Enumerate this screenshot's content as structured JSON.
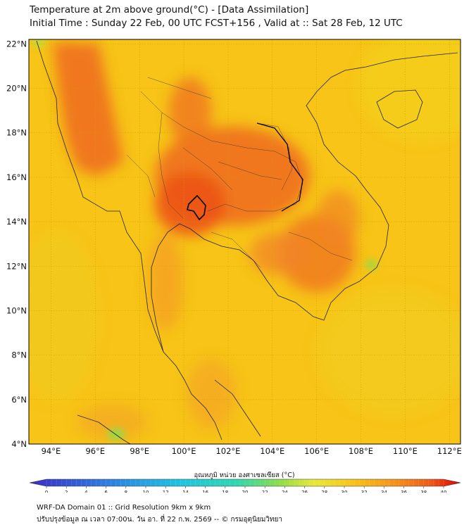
{
  "header": {
    "title": "Temperature at 2m above ground(°C) - [Data Assimilation]",
    "subtitle": "Initial Time : Sunday 22 Feb, 00 UTC FCST+156 , Valid at :: Sat 28 Feb, 12 UTC"
  },
  "map": {
    "lon_range": [
      93,
      112.5
    ],
    "lat_range": [
      4,
      22.2
    ],
    "lon_ticks": [
      "94°E",
      "96°E",
      "98°E",
      "100°E",
      "102°E",
      "104°E",
      "106°E",
      "108°E",
      "110°E",
      "112°E"
    ],
    "lat_ticks": [
      "4°N",
      "6°N",
      "8°N",
      "10°N",
      "12°N",
      "14°N",
      "16°N",
      "18°N",
      "20°N",
      "22°N"
    ],
    "background_color": "#f7c417",
    "grid": true
  },
  "colorbar": {
    "label": "อุณหภูมิ หน่วย องศาเซลเซียส (°C)",
    "ticks": [
      "0",
      "2",
      "4",
      "6",
      "8",
      "10",
      "12",
      "14",
      "16",
      "18",
      "20",
      "22",
      "24",
      "26",
      "28",
      "30",
      "32",
      "34",
      "36",
      "38",
      "40"
    ],
    "min_color": "#3b2cc4",
    "max_color": "#e00000"
  },
  "footer": {
    "line1": "WRF-DA Domain 01 :: Grid Resolution 9km x 9km",
    "line2": "ปรับปรุงข้อมูล ณ เวลา 07:00น. วัน อา. ที่ 22 ก.พ. 2569 -- © กรมอุตุนิยมวิทยา"
  }
}
